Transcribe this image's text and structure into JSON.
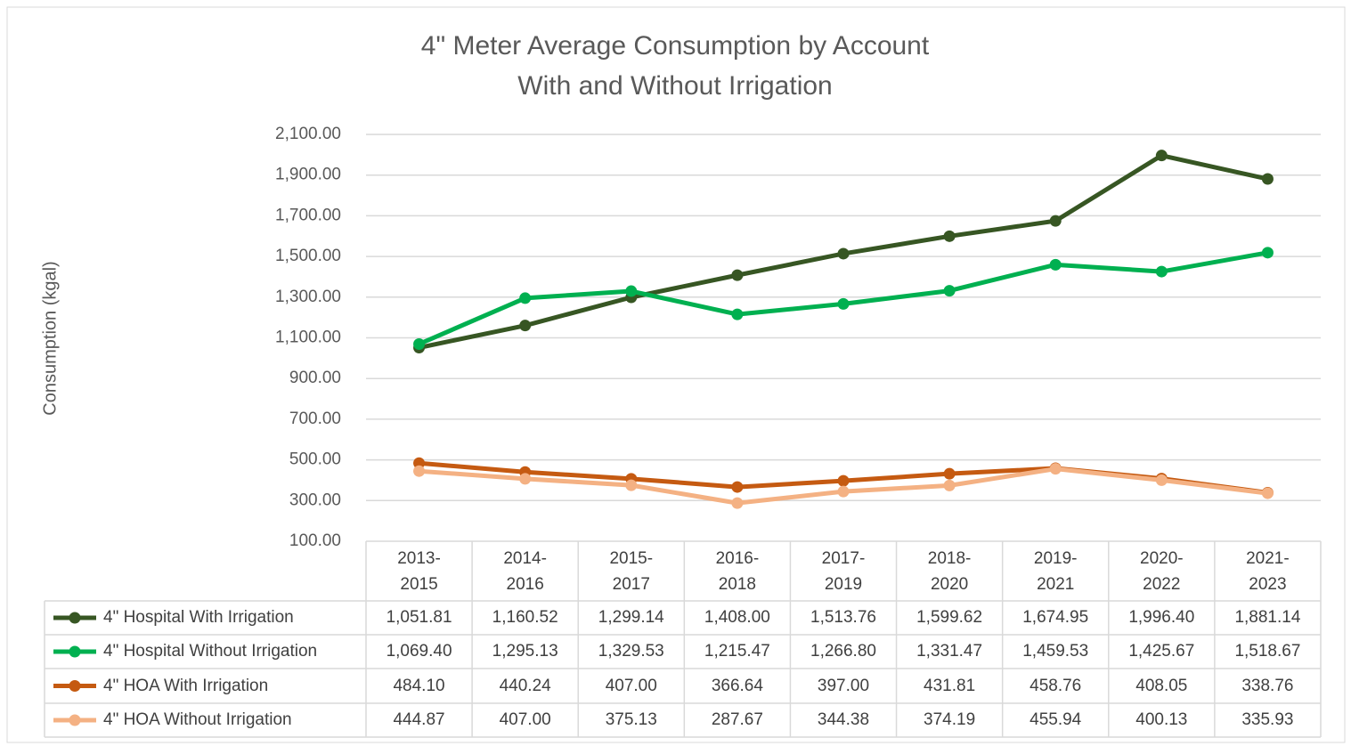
{
  "chart_data": {
    "type": "line",
    "title": [
      "4\" Meter Average Consumption by Account",
      "With and Without Irrigation"
    ],
    "y_label": "Consumption (kgal)",
    "categories": [
      "2013-2015",
      "2014-2016",
      "2015-2017",
      "2016-2018",
      "2017-2019",
      "2018-2020",
      "2019-2021",
      "2020-2022",
      "2021-2023"
    ],
    "ylim": [
      100,
      2100
    ],
    "yticks": [
      {
        "value": 100,
        "label": "100.00"
      },
      {
        "value": 300,
        "label": "300.00"
      },
      {
        "value": 500,
        "label": "500.00"
      },
      {
        "value": 700,
        "label": "700.00"
      },
      {
        "value": 900,
        "label": "900.00"
      },
      {
        "value": 1100,
        "label": "1,100.00"
      },
      {
        "value": 1300,
        "label": "1,300.00"
      },
      {
        "value": 1500,
        "label": "1,500.00"
      },
      {
        "value": 1700,
        "label": "1,700.00"
      },
      {
        "value": 1900,
        "label": "1,900.00"
      },
      {
        "value": 2100,
        "label": "2,100.00"
      }
    ],
    "grid": true,
    "series": [
      {
        "name": "4\" Hospital With Irrigation",
        "color": "#375623",
        "values": [
          1051.81,
          1160.52,
          1299.14,
          1408.0,
          1513.76,
          1599.62,
          1674.95,
          1996.4,
          1881.14
        ],
        "value_labels": [
          "1,051.81",
          "1,160.52",
          "1,299.14",
          "1,408.00",
          "1,513.76",
          "1,599.62",
          "1,674.95",
          "1,996.40",
          "1,881.14"
        ]
      },
      {
        "name": "4\" Hospital Without Irrigation",
        "color": "#00b050",
        "values": [
          1069.4,
          1295.13,
          1329.53,
          1215.47,
          1266.8,
          1331.47,
          1459.53,
          1425.67,
          1518.67
        ],
        "value_labels": [
          "1,069.40",
          "1,295.13",
          "1,329.53",
          "1,215.47",
          "1,266.80",
          "1,331.47",
          "1,459.53",
          "1,425.67",
          "1,518.67"
        ]
      },
      {
        "name": "4\" HOA With Irrigation",
        "color": "#c55a11",
        "values": [
          484.1,
          440.24,
          407.0,
          366.64,
          397.0,
          431.81,
          458.76,
          408.05,
          338.76
        ],
        "value_labels": [
          "484.10",
          "440.24",
          "407.00",
          "366.64",
          "397.00",
          "431.81",
          "458.76",
          "408.05",
          "338.76"
        ]
      },
      {
        "name": "4\" HOA Without Irrigation",
        "color": "#f4b183",
        "values": [
          444.87,
          407.0,
          375.13,
          287.67,
          344.38,
          374.19,
          455.94,
          400.13,
          335.93
        ],
        "value_labels": [
          "444.87",
          "407.00",
          "375.13",
          "287.67",
          "344.38",
          "374.19",
          "455.94",
          "400.13",
          "335.93"
        ]
      }
    ]
  }
}
